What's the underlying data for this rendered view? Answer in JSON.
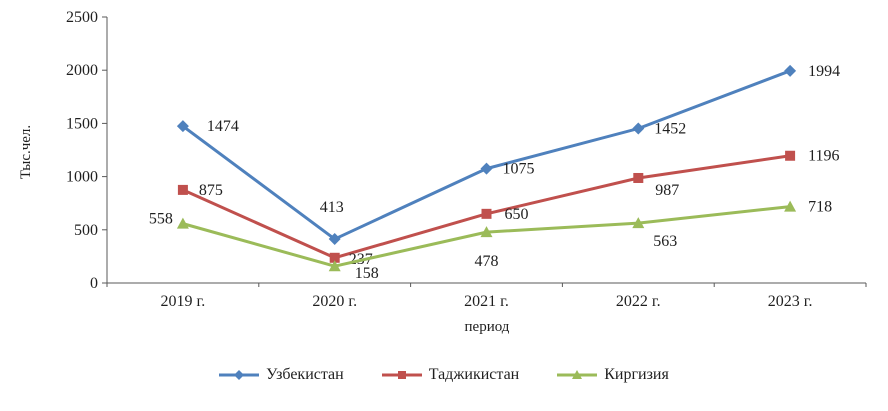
{
  "chart_data": {
    "type": "line",
    "title": "",
    "xlabel": "период",
    "ylabel": "Тыс.чел.",
    "ylim": [
      0,
      2500
    ],
    "y_tick_step": 500,
    "y_tick_labels": [
      "0",
      "500",
      "1000",
      "1500",
      "2000",
      "2500"
    ],
    "grid": false,
    "legend_position": "bottom",
    "categories": [
      "2019 г.",
      "2020 г.",
      "2021 г.",
      "2022 г.",
      "2023 г."
    ],
    "series": [
      {
        "name": "Узбекистан",
        "color": "#4F81BD",
        "marker": "diamond",
        "values": [
          1474,
          413,
          1075,
          1452,
          1994
        ],
        "label_offsets": [
          [
            24,
            5,
            "start"
          ],
          [
            -3,
            -27,
            "middle"
          ],
          [
            16,
            5,
            "start"
          ],
          [
            16,
            5,
            "start"
          ],
          [
            18,
            5,
            "start"
          ]
        ]
      },
      {
        "name": "Таджикистан",
        "color": "#C0504D",
        "marker": "square",
        "values": [
          875,
          237,
          650,
          987,
          1196
        ],
        "label_offsets": [
          [
            16,
            5,
            "start"
          ],
          [
            14,
            6,
            "start"
          ],
          [
            18,
            5,
            "start"
          ],
          [
            17,
            17,
            "start"
          ],
          [
            18,
            5,
            "start"
          ]
        ]
      },
      {
        "name": "Киргизия",
        "color": "#9BBB59",
        "marker": "triangle",
        "values": [
          558,
          158,
          478,
          563,
          718
        ],
        "label_offsets": [
          [
            -10,
            0,
            "end"
          ],
          [
            20,
            12,
            "start"
          ],
          [
            0,
            34,
            "middle"
          ],
          [
            15,
            23,
            "start"
          ],
          [
            18,
            5,
            "start"
          ]
        ]
      }
    ]
  }
}
